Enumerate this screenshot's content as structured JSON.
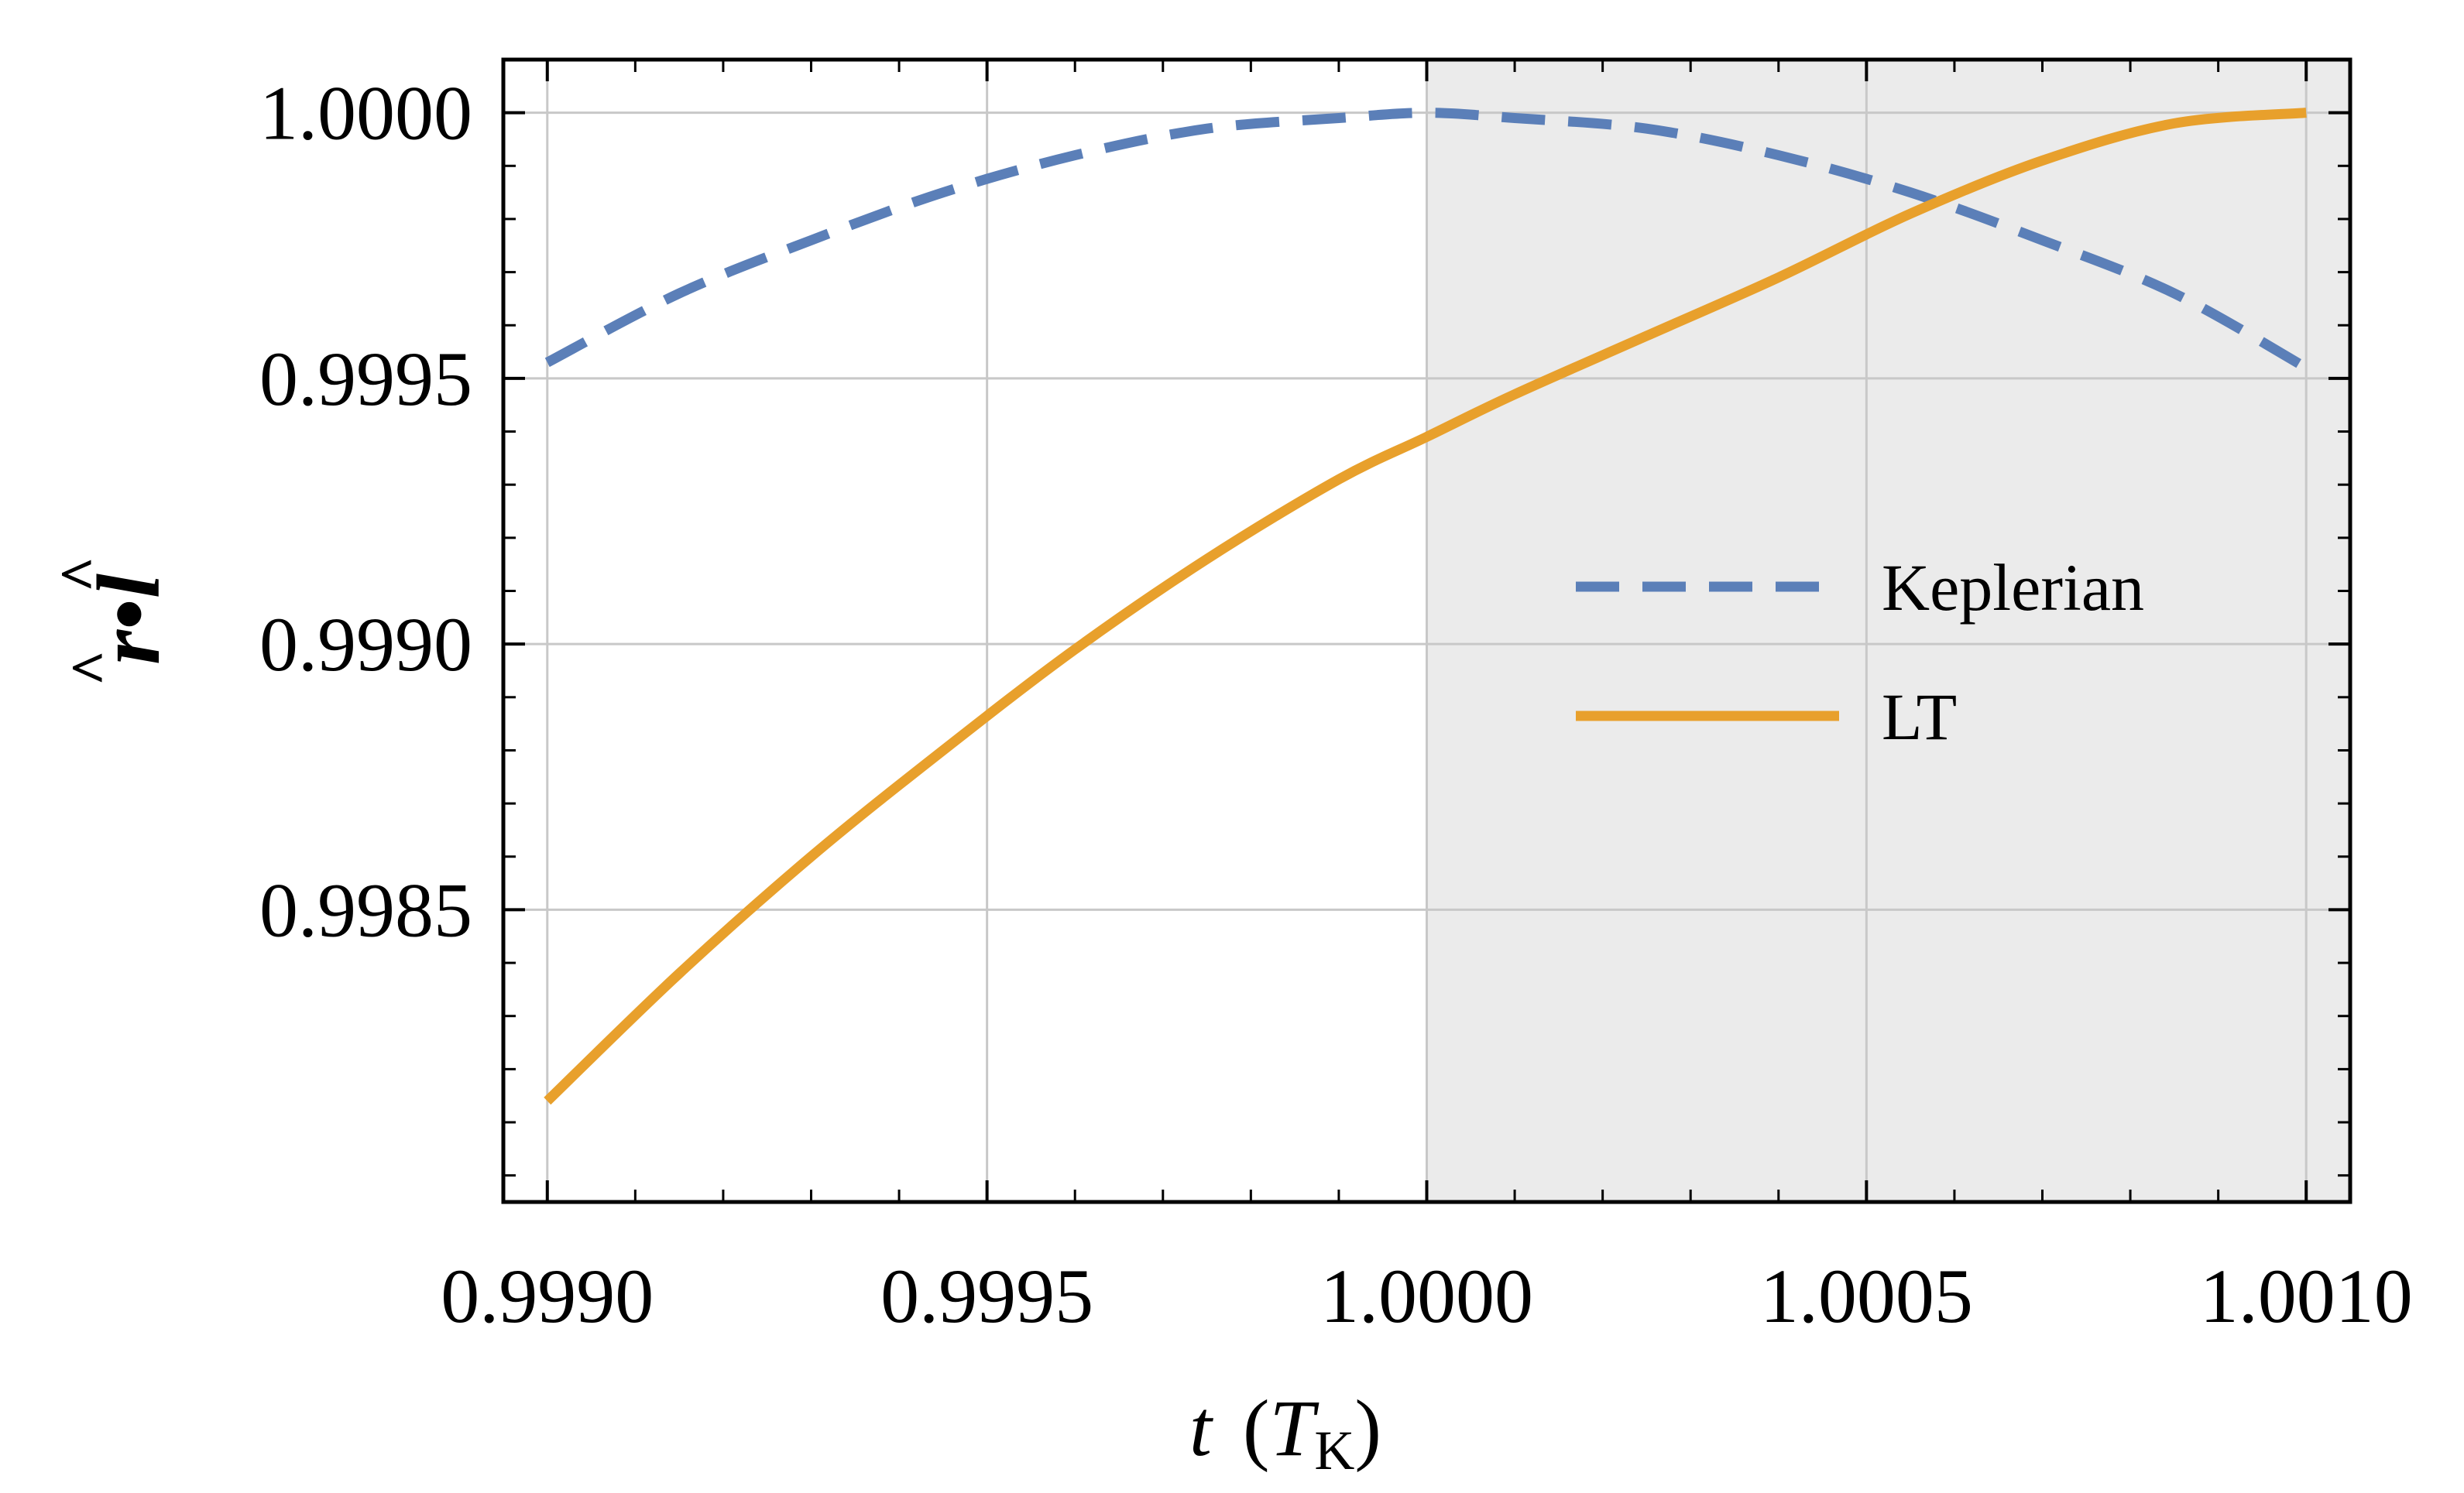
{
  "chart_data": {
    "type": "line",
    "title": "",
    "xlabel": {
      "var": "t",
      "unit_open": "(",
      "unit_var": "T",
      "unit_sub": "K",
      "unit_close": ")"
    },
    "ylabel": {
      "r": "r",
      "dot": "•",
      "l": "l"
    },
    "xlim": [
      0.99895,
      1.00105
    ],
    "ylim": [
      0.99795,
      1.0001
    ],
    "x_ticks": [
      0.999,
      0.9995,
      1.0,
      1.0005,
      1.001
    ],
    "x_tick_labels": [
      "0.9990",
      "0.9995",
      "1.0000",
      "1.0005",
      "1.0010"
    ],
    "y_ticks": [
      0.9985,
      0.999,
      0.9995,
      1.0
    ],
    "y_tick_labels": [
      "0.9985",
      "0.9990",
      "0.9995",
      "1.0000"
    ],
    "grid": true,
    "shaded_region": {
      "x_from": 1.0,
      "x_to": 1.00105,
      "color": "#ebebeb"
    },
    "legend_position": "right",
    "series": [
      {
        "name": "Keplerian",
        "style": "dashed",
        "color": "#5b7fb8",
        "x": [
          0.999,
          0.99915,
          0.9993,
          0.99945,
          0.9996,
          0.99975,
          0.9999,
          1.0,
          1.0001,
          1.00025,
          1.0004,
          1.00055,
          1.0007,
          1.00085,
          1.001
        ],
        "y": [
          0.99953,
          0.99966,
          0.99976,
          0.99985,
          0.99992,
          0.99997,
          0.99999,
          1.0,
          0.99999,
          0.99997,
          0.99992,
          0.99985,
          0.99976,
          0.99966,
          0.99952
        ]
      },
      {
        "name": "LT",
        "style": "solid",
        "color": "#e8a02c",
        "x": [
          0.999,
          0.99915,
          0.9993,
          0.99945,
          0.9996,
          0.99975,
          0.9999,
          1.0,
          1.0001,
          1.00025,
          1.0004,
          1.00055,
          1.0007,
          1.00085,
          1.001
        ],
        "y": [
          0.99814,
          0.99838,
          0.9986,
          0.9988,
          0.99899,
          0.99916,
          0.99931,
          0.99939,
          0.99947,
          0.99958,
          0.99969,
          0.99981,
          0.99991,
          0.99998,
          1.0
        ]
      }
    ]
  }
}
